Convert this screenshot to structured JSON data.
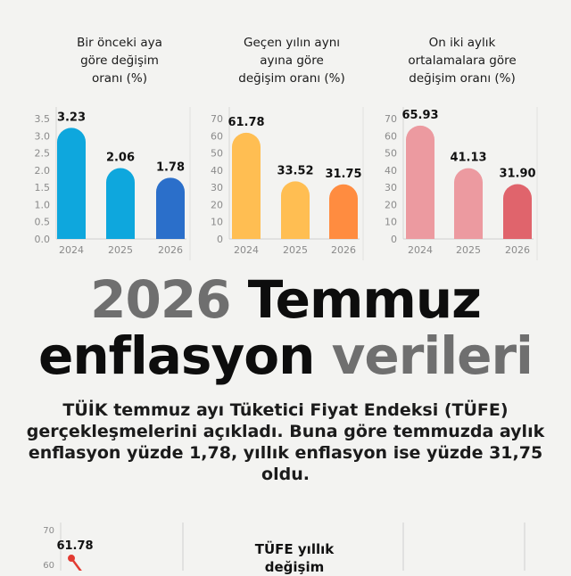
{
  "chart_data": [
    {
      "type": "bar",
      "title": "Bir önceki aya\ngöre değişim\noranı (%)",
      "categories": [
        "2024",
        "2025",
        "2026"
      ],
      "values": [
        3.23,
        2.06,
        1.78
      ],
      "value_labels": [
        "3.23",
        "2.06",
        "1.78"
      ],
      "yticks": [
        "0.0",
        "0.5",
        "1.0",
        "1.5",
        "2.0",
        "2.5",
        "3.0",
        "3.5"
      ],
      "ylim": [
        0,
        3.5
      ],
      "colors": [
        "#0ea7dd",
        "#0ea7dd",
        "#2b6fca"
      ]
    },
    {
      "type": "bar",
      "title": "Geçen yılın aynı\nayına göre\ndeğişim oranı (%)",
      "categories": [
        "2024",
        "2025",
        "2026"
      ],
      "values": [
        61.78,
        33.52,
        31.75
      ],
      "value_labels": [
        "61.78",
        "33.52",
        "31.75"
      ],
      "yticks": [
        "0",
        "10",
        "20",
        "30",
        "40",
        "50",
        "60",
        "70"
      ],
      "ylim": [
        0,
        70
      ],
      "colors": [
        "#ffbe52",
        "#ffbe52",
        "#ff8c40"
      ]
    },
    {
      "type": "bar",
      "title": "On iki aylık\nortalamalara göre\ndeğişim oranı (%)",
      "categories": [
        "2024",
        "2025",
        "2026"
      ],
      "values": [
        65.93,
        41.13,
        31.9
      ],
      "value_labels": [
        "65.93",
        "41.13",
        "31.90"
      ],
      "yticks": [
        "0",
        "10",
        "20",
        "30",
        "40",
        "50",
        "60",
        "70"
      ],
      "ylim": [
        0,
        70
      ],
      "colors": [
        "#ec9aa0",
        "#ec9aa0",
        "#e0646c"
      ]
    },
    {
      "type": "line",
      "title": "TÜFE yıllık değişim",
      "yticks": [
        "60",
        "70"
      ],
      "ylim": [
        60,
        70
      ],
      "series": [
        {
          "values": [
            61.78
          ],
          "value_labels": [
            "61.78"
          ]
        }
      ],
      "colors": [
        "#e23b32"
      ]
    }
  ],
  "headline": {
    "line1_year": "2026",
    "line1_month": "Temmuz",
    "line2_word1": "enflasyon",
    "line2_word2": "verileri"
  },
  "intro": "TÜİK temmuz ayı Tüketici Fiyat Endeksi (TÜFE) gerçekleşmelerini açıkladı. Buna göre temmuzda aylık enflasyon yüzde 1,78, yıllık enflasyon ise yüzde 31,75 oldu."
}
